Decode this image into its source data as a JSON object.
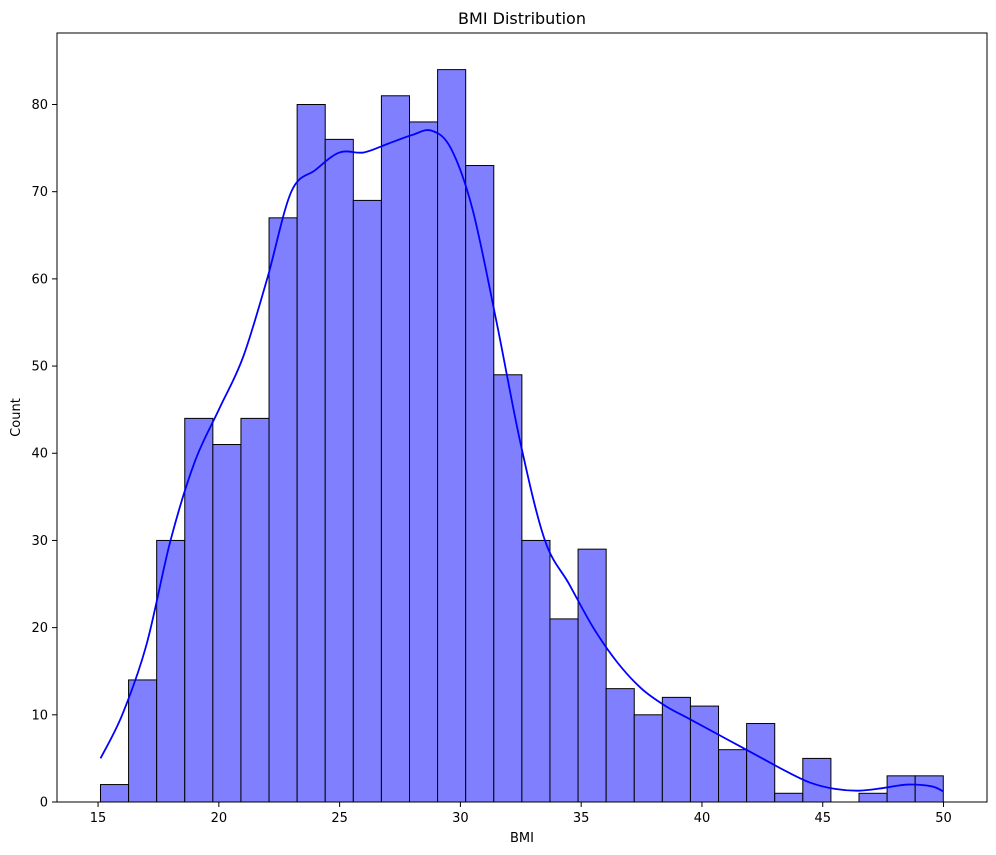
{
  "chart_data": {
    "type": "bar",
    "title": "BMI Distribution",
    "xlabel": "BMI",
    "ylabel": "Count",
    "xlim": [
      13.3,
      51.8
    ],
    "ylim": [
      0,
      88.2
    ],
    "xticks": [
      15,
      20,
      25,
      30,
      35,
      40,
      45,
      50
    ],
    "yticks": [
      0,
      10,
      20,
      30,
      40,
      50,
      60,
      70,
      80
    ],
    "bin_start": 15.1,
    "bin_width": 1.163,
    "counts": [
      2,
      14,
      30,
      44,
      41,
      44,
      67,
      80,
      76,
      69,
      81,
      78,
      84,
      73,
      49,
      30,
      21,
      29,
      13,
      10,
      12,
      11,
      6,
      9,
      1,
      5,
      0,
      1,
      3,
      3
    ],
    "bar_color": "#8080ff",
    "edge_color": "#000000",
    "kde": {
      "color": "#0000ff",
      "x": [
        15.1,
        16.0,
        17.0,
        18.0,
        19.0,
        20.0,
        21.0,
        22.0,
        23.0,
        24.0,
        25.0,
        26.0,
        27.0,
        28.0,
        28.8,
        29.6,
        30.5,
        31.5,
        32.5,
        33.5,
        34.5,
        35.5,
        36.5,
        37.5,
        38.5,
        39.5,
        40.5,
        41.5,
        42.5,
        43.5,
        44.5,
        45.5,
        46.5,
        47.5,
        48.5,
        49.5,
        50.0
      ],
      "y": [
        5,
        10,
        18,
        30,
        39,
        45,
        51,
        60,
        70,
        72.5,
        74.5,
        74.5,
        75.5,
        76.5,
        77,
        75,
        68,
        55,
        41,
        30,
        25,
        20,
        16,
        13,
        11,
        9.5,
        8,
        6.5,
        5,
        3.5,
        2.2,
        1.5,
        1.3,
        1.6,
        2.0,
        1.8,
        1.2
      ]
    },
    "grid": false,
    "legend": "none"
  }
}
